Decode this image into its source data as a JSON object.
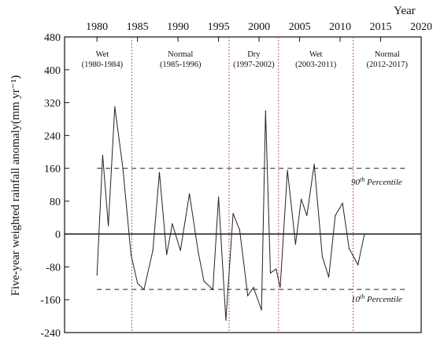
{
  "chart_data": {
    "type": "line",
    "title": "",
    "xlabel": "Year",
    "ylabel": "Five-year weighted rainfall anomaly(mm yr⁻¹)",
    "xlim": [
      1976,
      2020
    ],
    "ylim": [
      -240,
      480
    ],
    "x_ticks": [
      1980,
      1985,
      1990,
      1995,
      2000,
      2005,
      2010,
      2015,
      2020
    ],
    "y_ticks": [
      -240,
      -160,
      -80,
      0,
      80,
      160,
      240,
      320,
      400,
      480
    ],
    "grid": false,
    "series": [
      {
        "color": "#222222",
        "x": [
          1980.0,
          1980.7,
          1981.4,
          1982.2,
          1983.2,
          1984.2,
          1985.0,
          1985.8,
          1986.9,
          1987.7,
          1988.6,
          1989.3,
          1990.3,
          1991.4,
          1992.5,
          1993.2,
          1994.3,
          1995.0,
          1995.9,
          1996.8,
          1997.6,
          1998.6,
          1999.3,
          2000.3,
          2000.8,
          2001.4,
          2002.1,
          2002.6,
          2003.5,
          2004.5,
          2005.2,
          2005.9,
          2006.8,
          2007.8,
          2008.6,
          2009.4,
          2010.3,
          2011.1,
          2012.2,
          2013.0,
          2013.9,
          2015.2,
          2016.2,
          2017.0
        ],
        "y": [
          -100,
          192,
          20,
          310,
          160,
          -50,
          -120,
          -135,
          -40,
          150,
          -50,
          25,
          -40,
          98,
          -45,
          -115,
          -135,
          90,
          -210,
          50,
          10,
          -150,
          -130,
          -185,
          300,
          -95,
          -85,
          -130,
          155,
          -25,
          85,
          45,
          170,
          -55,
          -105,
          45,
          75,
          -35,
          -75,
          0,
          0,
          0,
          0,
          0
        ]
      }
    ],
    "reference_lines": [
      {
        "y": 160,
        "style": "dashed",
        "label": "90th Percentile"
      },
      {
        "y": -135,
        "style": "dashed",
        "label": "10th Percentile"
      },
      {
        "y": 0,
        "style": "solid",
        "label": ""
      }
    ],
    "period_dividers": [
      1984.3,
      1996.3,
      2002.4,
      2011.6
    ],
    "periods": [
      {
        "name": "Wet",
        "range": "(1980-1984)"
      },
      {
        "name": "Normal",
        "range": "(1985-1996)"
      },
      {
        "name": "Dry",
        "range": "(1997-2002)"
      },
      {
        "name": "Wet",
        "range": "(2003-2011)"
      },
      {
        "name": "Normal",
        "range": "(2012-2017)"
      }
    ],
    "divider_color": "#c0567f"
  }
}
